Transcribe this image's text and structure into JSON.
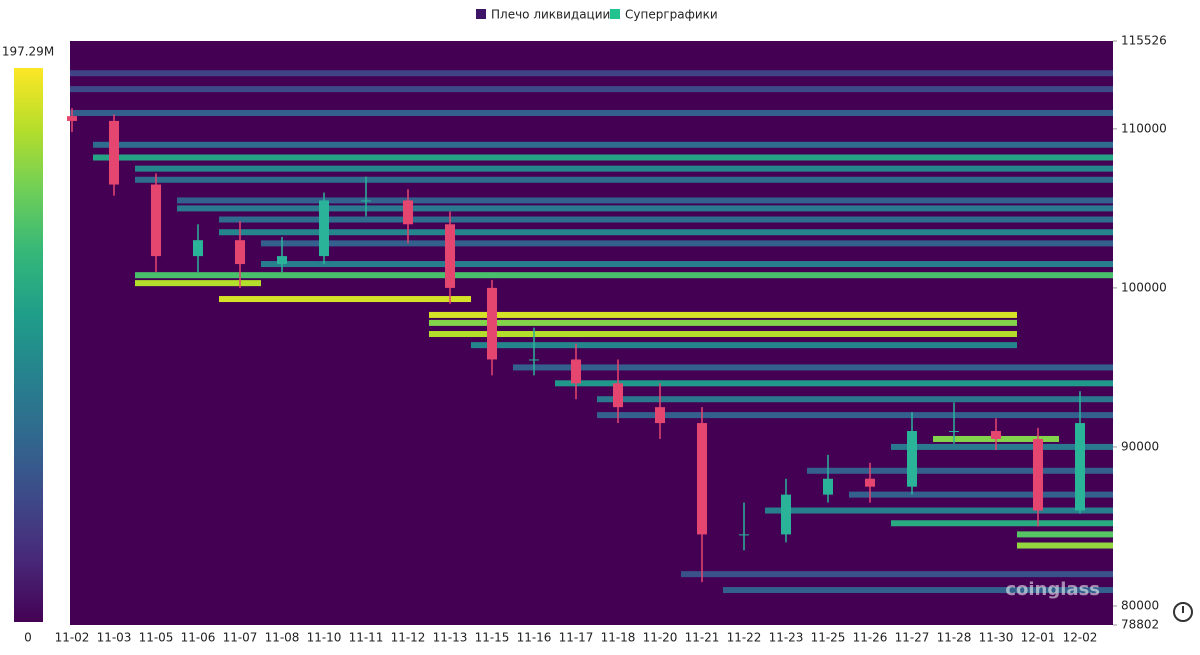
{
  "chart_data": {
    "type": "liquidation-heatmap",
    "legend": [
      {
        "name": "Плечо ликвидации",
        "color": "#3d1466"
      },
      {
        "name": "Суперграфики",
        "color": "#22c38e"
      }
    ],
    "watermark": "coinglass",
    "colormap": [
      "#440154",
      "#482878",
      "#3e4989",
      "#31688e",
      "#26828e",
      "#1f9e89",
      "#35b779",
      "#6ece58",
      "#b5de2b",
      "#fde725"
    ],
    "colorbar_lim": [
      0,
      197290000
    ],
    "colorbar_ticks": [
      0,
      {
        "value": 197290000,
        "label": "197.29M"
      }
    ],
    "ylim": [
      78802,
      115526
    ],
    "yticks": [
      115526,
      110000,
      100000,
      90000,
      80000,
      78802
    ],
    "categories": [
      "11-02",
      "11-03",
      "11-05",
      "11-06",
      "11-07",
      "11-08",
      "11-10",
      "11-11",
      "11-12",
      "11-13",
      "11-15",
      "11-16",
      "11-17",
      "11-18",
      "11-20",
      "11-21",
      "11-22",
      "11-23",
      "11-25",
      "11-26",
      "11-27",
      "11-28",
      "11-30",
      "12-01",
      "12-02"
    ],
    "up_color": "#2bb39a",
    "down_color": "#e5466f",
    "open": [
      110800,
      110500,
      106500,
      102000,
      103000,
      101500,
      102000,
      105500,
      105500,
      104000,
      100000,
      95500,
      95500,
      94000,
      92500,
      91500,
      84500,
      84500,
      87000,
      88000,
      87500,
      91000,
      91000,
      90500,
      86000
    ],
    "high": [
      111300,
      110900,
      107200,
      104000,
      104200,
      103200,
      106000,
      107000,
      106200,
      104800,
      100500,
      97500,
      96500,
      95500,
      94000,
      92500,
      86500,
      88000,
      89500,
      89000,
      92200,
      92800,
      91800,
      91200,
      93500
    ],
    "low": [
      109800,
      105800,
      101000,
      101000,
      100000,
      101000,
      101500,
      104500,
      102800,
      99000,
      94500,
      94500,
      93000,
      91500,
      90500,
      81500,
      83500,
      84000,
      86500,
      86500,
      87000,
      90200,
      89800,
      85000,
      85800
    ],
    "close": [
      110500,
      106500,
      102000,
      103000,
      101500,
      102000,
      105500,
      105500,
      104000,
      100000,
      95500,
      95500,
      94000,
      92500,
      91500,
      84500,
      84500,
      87000,
      88000,
      87500,
      91000,
      91000,
      90500,
      86000,
      91500
    ],
    "levels": [
      {
        "price": 113500,
        "x0": 0,
        "x1": 24,
        "value": 40000000
      },
      {
        "price": 112500,
        "x0": 0,
        "x1": 24,
        "value": 45000000
      },
      {
        "price": 111000,
        "x0": 0,
        "x1": 24,
        "value": 60000000
      },
      {
        "price": 109000,
        "x0": 1,
        "x1": 24,
        "value": 70000000
      },
      {
        "price": 108200,
        "x0": 1,
        "x1": 24,
        "value": 115000000
      },
      {
        "price": 107500,
        "x0": 2,
        "x1": 24,
        "value": 90000000
      },
      {
        "price": 106800,
        "x0": 2,
        "x1": 24,
        "value": 70000000
      },
      {
        "price": 105500,
        "x0": 3,
        "x1": 24,
        "value": 60000000
      },
      {
        "price": 105000,
        "x0": 3,
        "x1": 24,
        "value": 80000000
      },
      {
        "price": 104300,
        "x0": 4,
        "x1": 24,
        "value": 70000000
      },
      {
        "price": 103500,
        "x0": 4,
        "x1": 24,
        "value": 90000000
      },
      {
        "price": 102800,
        "x0": 5,
        "x1": 24,
        "value": 60000000
      },
      {
        "price": 101500,
        "x0": 5,
        "x1": 24,
        "value": 85000000
      },
      {
        "price": 100800,
        "x0": 2,
        "x1": 24,
        "value": 140000000
      },
      {
        "price": 100300,
        "x0": 2,
        "x1": 4,
        "value": 175000000
      },
      {
        "price": 99300,
        "x0": 4,
        "x1": 9,
        "value": 185000000
      },
      {
        "price": 98300,
        "x0": 9,
        "x1": 22,
        "value": 185000000
      },
      {
        "price": 97800,
        "x0": 9,
        "x1": 22,
        "value": 160000000
      },
      {
        "price": 97100,
        "x0": 9,
        "x1": 22,
        "value": 175000000
      },
      {
        "price": 96400,
        "x0": 10,
        "x1": 22,
        "value": 90000000
      },
      {
        "price": 95000,
        "x0": 11,
        "x1": 24,
        "value": 60000000
      },
      {
        "price": 94000,
        "x0": 12,
        "x1": 24,
        "value": 105000000
      },
      {
        "price": 93000,
        "x0": 13,
        "x1": 24,
        "value": 80000000
      },
      {
        "price": 92000,
        "x0": 13,
        "x1": 24,
        "value": 60000000
      },
      {
        "price": 90500,
        "x0": 21,
        "x1": 23,
        "value": 160000000
      },
      {
        "price": 90000,
        "x0": 20,
        "x1": 24,
        "value": 80000000
      },
      {
        "price": 88500,
        "x0": 18,
        "x1": 24,
        "value": 60000000
      },
      {
        "price": 87000,
        "x0": 19,
        "x1": 24,
        "value": 60000000
      },
      {
        "price": 86000,
        "x0": 17,
        "x1": 24,
        "value": 85000000
      },
      {
        "price": 85200,
        "x0": 20,
        "x1": 24,
        "value": 120000000
      },
      {
        "price": 84500,
        "x0": 23,
        "x1": 24,
        "value": 145000000
      },
      {
        "price": 83800,
        "x0": 23,
        "x1": 24,
        "value": 165000000
      },
      {
        "price": 82000,
        "x0": 15,
        "x1": 24,
        "value": 50000000
      },
      {
        "price": 81000,
        "x0": 16,
        "x1": 24,
        "value": 60000000
      }
    ]
  }
}
